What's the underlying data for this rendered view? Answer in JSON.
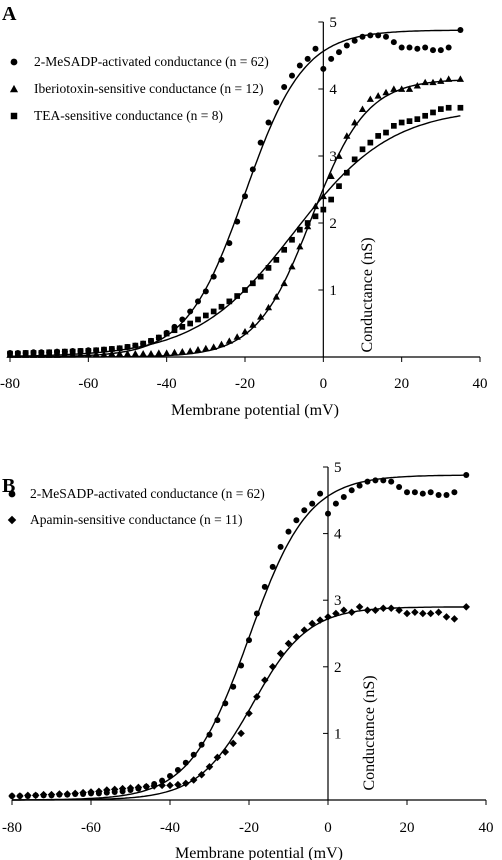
{
  "chart_data": [
    {
      "panel": "A",
      "type": "scatter",
      "xlabel": "Membrane potential (mV)",
      "ylabel": "Conductance (nS)",
      "xlim": [
        -80,
        40
      ],
      "ylim": [
        0,
        5
      ],
      "xticks": [
        "-80",
        "-60",
        "-40",
        "-20",
        "0",
        "20",
        "40"
      ],
      "yticks": [
        "1",
        "2",
        "3",
        "4",
        "5"
      ],
      "legend_position": "top-left",
      "series": [
        {
          "name": "2-MeSADP-activated conductance (n = 62)",
          "marker": "circle",
          "x": [
            -80,
            -78,
            -76,
            -74,
            -72,
            -70,
            -68,
            -66,
            -64,
            -62,
            -60,
            -58,
            -56,
            -54,
            -52,
            -50,
            -48,
            -46,
            -44,
            -42,
            -40,
            -38,
            -36,
            -34,
            -32,
            -30,
            -28,
            -26,
            -24,
            -22,
            -20,
            -18,
            -16,
            -14,
            -12,
            -10,
            -8,
            -6,
            -4,
            -2,
            0,
            2,
            4,
            6,
            8,
            10,
            12,
            14,
            16,
            18,
            20,
            22,
            24,
            26,
            28,
            30,
            32,
            35
          ],
          "y": [
            0.06,
            0.06,
            0.06,
            0.07,
            0.07,
            0.07,
            0.08,
            0.08,
            0.09,
            0.09,
            0.1,
            0.1,
            0.11,
            0.12,
            0.13,
            0.15,
            0.17,
            0.2,
            0.24,
            0.29,
            0.36,
            0.45,
            0.56,
            0.68,
            0.83,
            0.98,
            1.2,
            1.45,
            1.7,
            2.02,
            2.4,
            2.8,
            3.2,
            3.5,
            3.8,
            4.03,
            4.2,
            4.35,
            4.45,
            4.6,
            4.3,
            4.45,
            4.55,
            4.65,
            4.72,
            4.78,
            4.8,
            4.8,
            4.78,
            4.7,
            4.62,
            4.62,
            4.6,
            4.62,
            4.58,
            4.58,
            4.62,
            4.88
          ]
        },
        {
          "name": "Iberiotoxin-sensitive conductance (n = 12)",
          "marker": "triangle",
          "x": [
            -80,
            -78,
            -76,
            -74,
            -72,
            -70,
            -68,
            -66,
            -64,
            -62,
            -60,
            -58,
            -56,
            -54,
            -52,
            -50,
            -48,
            -46,
            -44,
            -42,
            -40,
            -38,
            -36,
            -34,
            -32,
            -30,
            -28,
            -26,
            -24,
            -22,
            -20,
            -18,
            -16,
            -14,
            -12,
            -10,
            -8,
            -6,
            -4,
            -2,
            0,
            2,
            4,
            6,
            8,
            10,
            12,
            14,
            16,
            18,
            20,
            22,
            24,
            26,
            28,
            30,
            32,
            35
          ],
          "y": [
            0.03,
            0.03,
            0.03,
            0.03,
            0.03,
            0.03,
            0.03,
            0.04,
            0.04,
            0.04,
            0.04,
            0.04,
            0.04,
            0.05,
            0.05,
            0.05,
            0.05,
            0.05,
            0.05,
            0.06,
            0.06,
            0.07,
            0.08,
            0.09,
            0.11,
            0.13,
            0.15,
            0.19,
            0.24,
            0.3,
            0.38,
            0.48,
            0.6,
            0.74,
            0.9,
            1.1,
            1.35,
            1.65,
            1.95,
            2.25,
            2.4,
            2.7,
            3.0,
            3.3,
            3.5,
            3.7,
            3.85,
            3.9,
            3.95,
            4.0,
            4.0,
            4.0,
            4.05,
            4.1,
            4.1,
            4.12,
            4.15,
            4.15
          ]
        },
        {
          "name": "TEA-sensitive conductance (n = 8)",
          "marker": "square",
          "x": [
            -80,
            -78,
            -76,
            -74,
            -72,
            -70,
            -68,
            -66,
            -64,
            -62,
            -60,
            -58,
            -56,
            -54,
            -52,
            -50,
            -48,
            -46,
            -44,
            -42,
            -40,
            -38,
            -36,
            -34,
            -32,
            -30,
            -28,
            -26,
            -24,
            -22,
            -20,
            -18,
            -16,
            -14,
            -12,
            -10,
            -8,
            -6,
            -4,
            -2,
            0,
            2,
            4,
            6,
            8,
            10,
            12,
            14,
            16,
            18,
            20,
            22,
            24,
            26,
            28,
            30,
            32,
            35
          ],
          "y": [
            0.05,
            0.05,
            0.06,
            0.06,
            0.06,
            0.07,
            0.07,
            0.08,
            0.08,
            0.09,
            0.09,
            0.1,
            0.11,
            0.12,
            0.13,
            0.15,
            0.17,
            0.2,
            0.24,
            0.29,
            0.35,
            0.4,
            0.45,
            0.5,
            0.56,
            0.62,
            0.68,
            0.75,
            0.83,
            0.91,
            1.0,
            1.1,
            1.2,
            1.33,
            1.45,
            1.6,
            1.75,
            1.9,
            2.0,
            2.1,
            2.2,
            2.35,
            2.55,
            2.75,
            2.95,
            3.1,
            3.2,
            3.3,
            3.35,
            3.45,
            3.5,
            3.52,
            3.55,
            3.6,
            3.65,
            3.7,
            3.72,
            3.72
          ]
        }
      ]
    },
    {
      "panel": "B",
      "type": "scatter",
      "xlabel": "Membrane potential (mV)",
      "ylabel": "Conductance (nS)",
      "xlim": [
        -80,
        40
      ],
      "ylim": [
        0,
        5
      ],
      "xticks": [
        "-80",
        "-60",
        "-40",
        "-20",
        "0",
        "20",
        "40"
      ],
      "yticks": [
        "1",
        "2",
        "3",
        "4",
        "5"
      ],
      "legend_position": "top-left",
      "series": [
        {
          "name": "2-MeSADP-activated conductance (n = 62)",
          "marker": "circle",
          "x": [
            -80,
            -78,
            -76,
            -74,
            -72,
            -70,
            -68,
            -66,
            -64,
            -62,
            -60,
            -58,
            -56,
            -54,
            -52,
            -50,
            -48,
            -46,
            -44,
            -42,
            -40,
            -38,
            -36,
            -34,
            -32,
            -30,
            -28,
            -26,
            -24,
            -22,
            -20,
            -18,
            -16,
            -14,
            -12,
            -10,
            -8,
            -6,
            -4,
            -2,
            0,
            2,
            4,
            6,
            8,
            10,
            12,
            14,
            16,
            18,
            20,
            22,
            24,
            26,
            28,
            30,
            32,
            35
          ],
          "y": [
            0.06,
            0.06,
            0.06,
            0.07,
            0.07,
            0.07,
            0.08,
            0.08,
            0.09,
            0.09,
            0.1,
            0.1,
            0.11,
            0.12,
            0.13,
            0.15,
            0.17,
            0.2,
            0.24,
            0.29,
            0.36,
            0.45,
            0.56,
            0.68,
            0.83,
            0.98,
            1.2,
            1.45,
            1.7,
            2.02,
            2.4,
            2.8,
            3.2,
            3.5,
            3.8,
            4.03,
            4.2,
            4.35,
            4.45,
            4.6,
            4.3,
            4.45,
            4.55,
            4.65,
            4.72,
            4.78,
            4.8,
            4.8,
            4.78,
            4.7,
            4.62,
            4.62,
            4.6,
            4.62,
            4.58,
            4.58,
            4.62,
            4.88
          ]
        },
        {
          "name": "Apamin-sensitive conductance (n = 11)",
          "marker": "diamond",
          "x": [
            -80,
            -78,
            -76,
            -74,
            -72,
            -70,
            -68,
            -66,
            -64,
            -62,
            -60,
            -58,
            -56,
            -54,
            -52,
            -50,
            -48,
            -46,
            -44,
            -42,
            -40,
            -38,
            -36,
            -34,
            -32,
            -30,
            -28,
            -26,
            -24,
            -22,
            -20,
            -18,
            -16,
            -14,
            -12,
            -10,
            -8,
            -6,
            -4,
            -2,
            0,
            2,
            4,
            6,
            8,
            10,
            12,
            14,
            16,
            18,
            20,
            22,
            24,
            26,
            28,
            30,
            32,
            35
          ],
          "y": [
            0.06,
            0.06,
            0.07,
            0.07,
            0.08,
            0.08,
            0.09,
            0.09,
            0.1,
            0.11,
            0.12,
            0.13,
            0.15,
            0.16,
            0.17,
            0.18,
            0.19,
            0.2,
            0.21,
            0.22,
            0.22,
            0.23,
            0.25,
            0.3,
            0.38,
            0.5,
            0.64,
            0.72,
            0.85,
            1.0,
            1.3,
            1.55,
            1.8,
            2.0,
            2.2,
            2.35,
            2.45,
            2.55,
            2.65,
            2.7,
            2.75,
            2.8,
            2.85,
            2.82,
            2.9,
            2.85,
            2.85,
            2.88,
            2.88,
            2.85,
            2.8,
            2.82,
            2.8,
            2.8,
            2.82,
            2.75,
            2.72,
            2.9
          ]
        }
      ]
    }
  ]
}
